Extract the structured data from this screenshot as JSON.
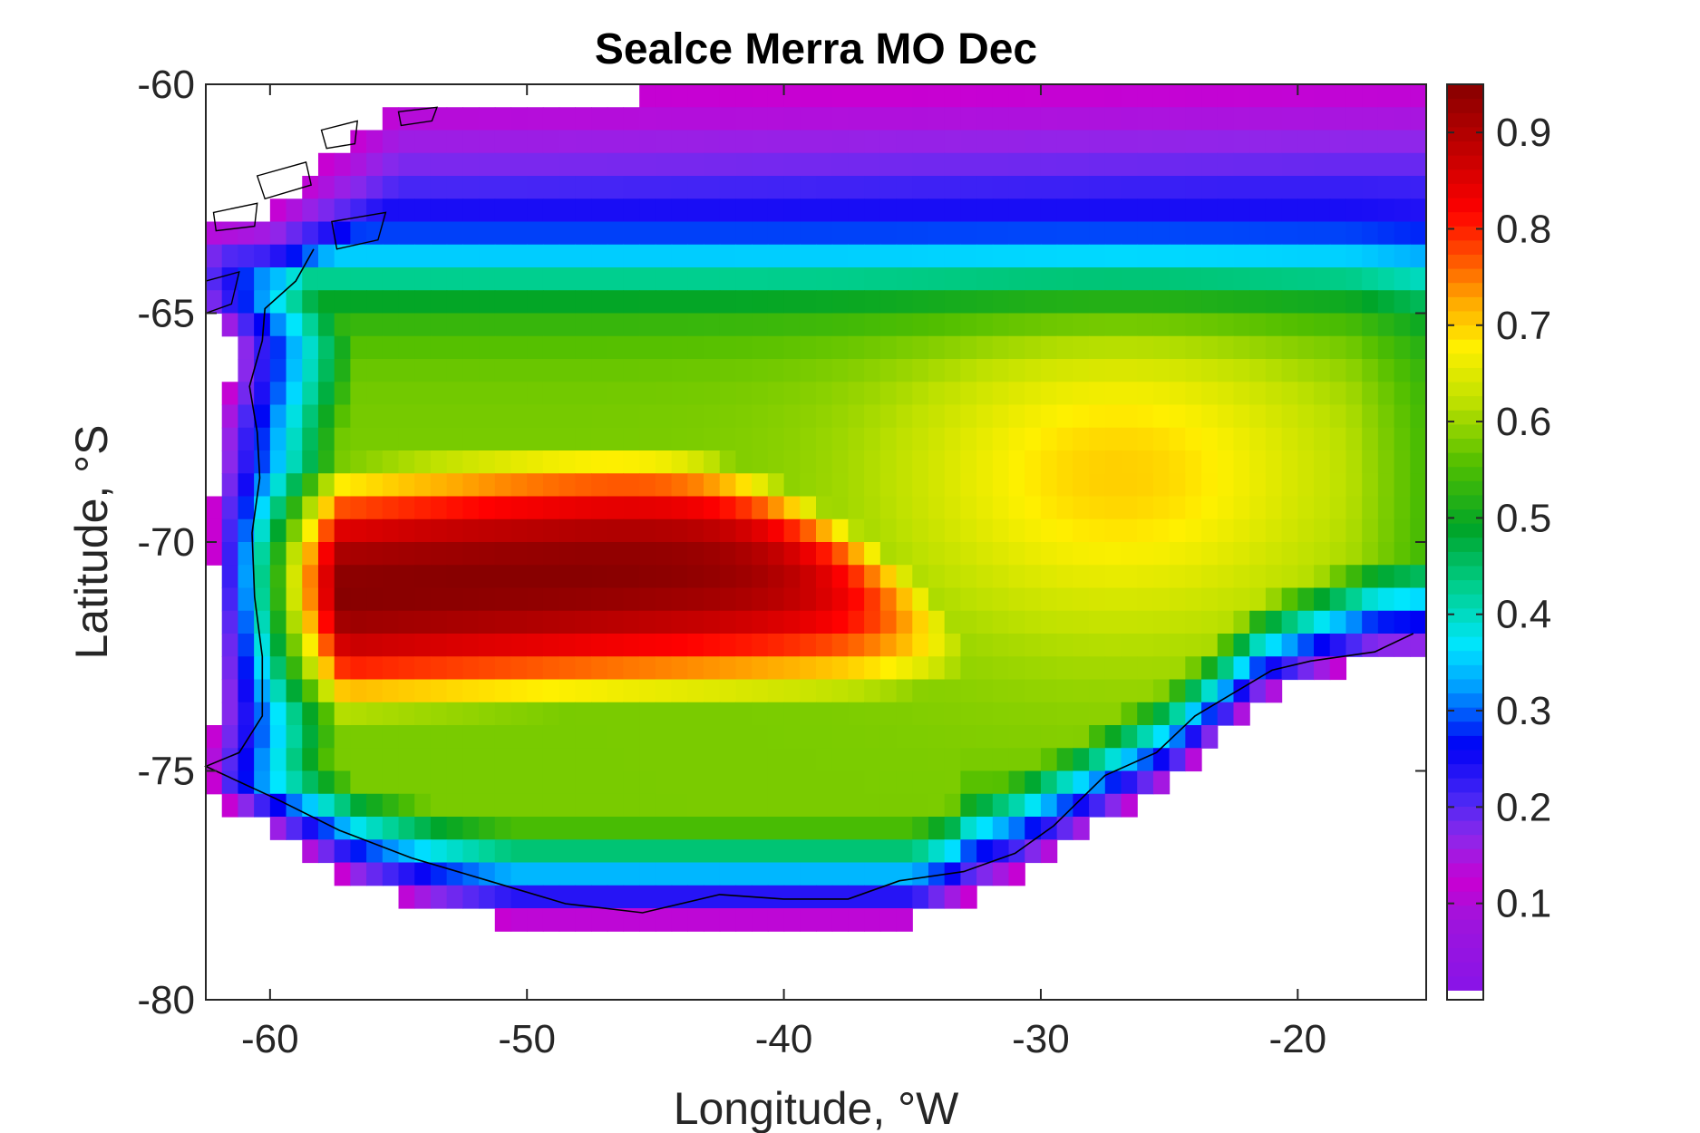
{
  "chart_data": {
    "type": "heatmap",
    "title": "Sealce Merra MO Dec",
    "xlabel": "Longitude, °W",
    "ylabel": "Latitude, °S",
    "xlim": [
      -62.5,
      -15
    ],
    "ylim": [
      -80,
      -60
    ],
    "xticks": [
      -60,
      -50,
      -40,
      -30,
      -20
    ],
    "xtick_labels": [
      "-60",
      "-50",
      "-40",
      "-30",
      "-20"
    ],
    "yticks": [
      -60,
      -65,
      -70,
      -75,
      -80
    ],
    "ytick_labels": [
      "-60",
      "-65",
      "-70",
      "-75",
      "-80"
    ],
    "colorbar": {
      "range": [
        0.01,
        0.95
      ],
      "ticks": [
        0.1,
        0.2,
        0.3,
        0.4,
        0.5,
        0.6,
        0.7,
        0.8,
        0.9
      ],
      "tick_labels": [
        "0.1",
        "0.2",
        "0.3",
        "0.4",
        "0.5",
        "0.6",
        "0.7",
        "0.8",
        "0.9"
      ],
      "colormap": "hsv-reversed (purple to dark red)",
      "below_range_color": "#ffffff"
    },
    "grid": false,
    "cell_size_degrees": {
      "lon": 0.625,
      "lat": 0.5
    },
    "description_values": {
      "interior_weddell_sea_max": 0.95,
      "western_edge_band_min": 0.15,
      "northern_edge_band_min": 0.15,
      "eastern_region_typical": 0.55
    },
    "colors": {
      "axis": "#262626",
      "coastline": "#000000"
    }
  }
}
